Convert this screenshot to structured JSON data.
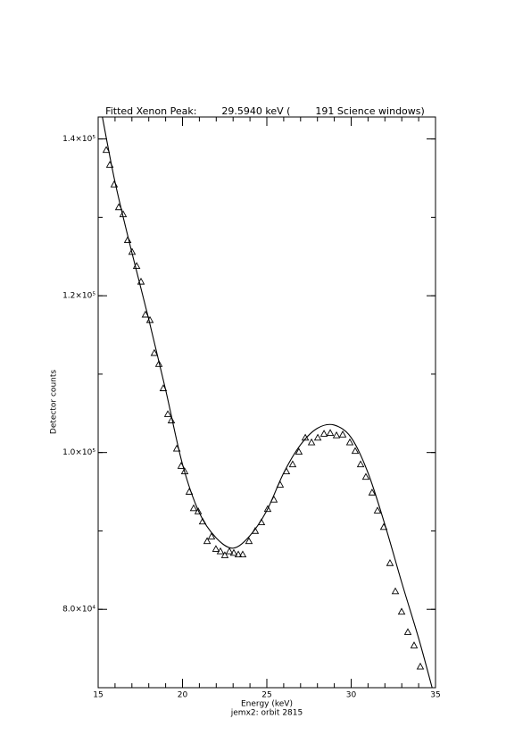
{
  "chart_data": {
    "type": "scatter",
    "title": "Fitted Xenon Peak:        29.5940 keV (        191 Science windows)",
    "x_label": "Energy (keV)",
    "subtitle": "jemx2: orbit 2815",
    "y_label": "Detector counts",
    "xlim": [
      15,
      35
    ],
    "xticks": [
      15,
      20,
      25,
      30,
      35
    ],
    "ylim": [
      70000,
      142800
    ],
    "yticks": [
      {
        "value": 80000,
        "label": "8.0×10⁴"
      },
      {
        "value": 100000,
        "label": "1.0×10⁵"
      },
      {
        "value": 120000,
        "label": "1.2×10⁵"
      },
      {
        "value": 140000,
        "label": "1.4×10⁵"
      }
    ],
    "series": [
      {
        "marker": "triangle",
        "color": "#000000",
        "x": [
          15.48,
          15.69,
          15.95,
          16.22,
          16.48,
          16.75,
          17.01,
          17.28,
          17.54,
          17.8,
          18.07,
          18.33,
          18.6,
          18.86,
          19.13,
          19.34,
          19.66,
          19.92,
          20.13,
          20.4,
          20.66,
          20.93,
          21.19,
          21.46,
          21.72,
          21.98,
          22.25,
          22.51,
          22.78,
          23.04,
          23.31,
          23.57,
          23.94,
          24.31,
          24.68,
          25.05,
          25.42,
          25.79,
          26.16,
          26.53,
          26.9,
          27.28,
          27.65,
          28.02,
          28.39,
          28.76,
          29.13,
          29.5,
          29.92,
          30.24,
          30.56,
          30.87,
          31.24,
          31.56,
          31.93,
          32.3,
          32.62,
          32.99,
          33.36,
          33.73,
          34.1
        ],
        "values": [
          138600,
          136700,
          134200,
          131300,
          130400,
          127100,
          125600,
          123800,
          121800,
          117600,
          116900,
          112700,
          111300,
          108200,
          104900,
          104100,
          100500,
          98300,
          97600,
          95000,
          92900,
          92500,
          91200,
          88700,
          89300,
          87700,
          87400,
          86900,
          87400,
          87200,
          87000,
          87000,
          88700,
          90000,
          91100,
          92800,
          94000,
          95900,
          97600,
          98500,
          100100,
          101900,
          101300,
          101900,
          102400,
          102500,
          102200,
          102300,
          101300,
          100200,
          98500,
          96900,
          94900,
          92600,
          90500,
          85900,
          82300,
          79700,
          77100,
          75400,
          72700
        ]
      },
      {
        "marker": "line",
        "color": "#000000",
        "x": [
          15.25,
          16,
          17,
          18,
          19,
          20,
          21,
          22,
          23,
          24,
          25,
          26,
          27,
          28,
          29,
          30,
          31,
          32,
          33,
          34,
          34.8
        ],
        "values": [
          142800,
          134500,
          125500,
          117000,
          108000,
          98500,
          92300,
          89100,
          87800,
          89400,
          92600,
          97400,
          101000,
          103100,
          103500,
          101900,
          97400,
          90800,
          83400,
          76300,
          70000
        ]
      }
    ]
  }
}
